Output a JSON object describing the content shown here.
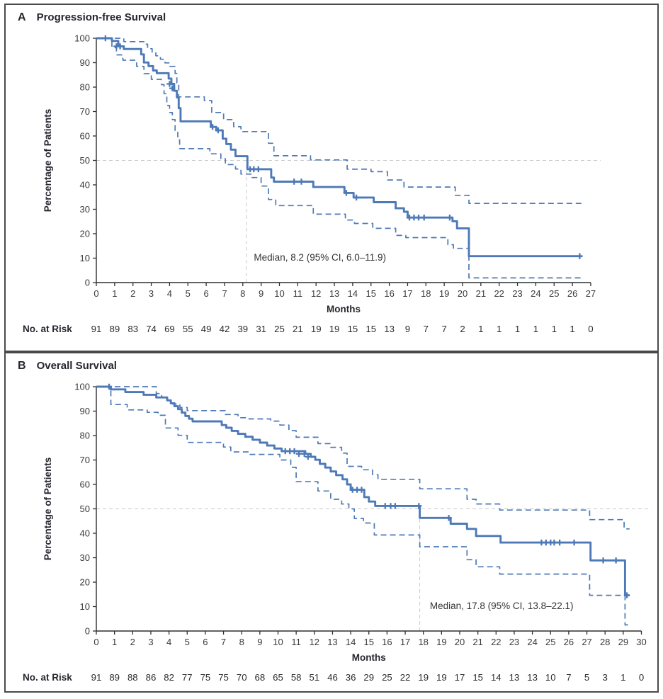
{
  "figure": {
    "risk_row_label": "No. at Risk",
    "y_axis_label": "Percentage of Patients",
    "x_axis_label": "Months",
    "accent_blue": "#4d79b6",
    "ref_gray": "#c9c9c9",
    "text_dark": "#3a3a3a",
    "border_gray": "#4a4a4a"
  },
  "chart_data": [
    {
      "type": "line",
      "subtype": "kaplan-meier-step",
      "panel_label": "A",
      "title": "Progression-free Survival",
      "ylabel": "Percentage of Patients",
      "xlabel": "Months",
      "risk_label": "No. at Risk",
      "median_text": "Median, 8.2 (95% CI, 6.0–11.9)",
      "median_x": 8.2,
      "median_y": 50,
      "x_max": 27,
      "ylim": [
        0,
        100
      ],
      "grid": "50%-reference-only",
      "legend_position": "none",
      "xticks": [
        0,
        1,
        2,
        3,
        4,
        5,
        6,
        7,
        8,
        9,
        10,
        11,
        12,
        13,
        14,
        15,
        16,
        17,
        18,
        19,
        20,
        21,
        22,
        23,
        24,
        25,
        26,
        27
      ],
      "yticks": [
        0,
        10,
        20,
        30,
        40,
        50,
        60,
        70,
        80,
        90,
        100
      ],
      "risk": [
        91,
        89,
        83,
        74,
        69,
        55,
        49,
        42,
        39,
        31,
        25,
        21,
        19,
        19,
        15,
        15,
        13,
        9,
        7,
        7,
        2,
        1,
        1,
        1,
        1,
        1,
        1,
        0
      ],
      "series": [
        {
          "name": "estimate",
          "style": "solid",
          "points": [
            [
              0,
              100
            ],
            [
              0.85,
              98.9
            ],
            [
              1.2,
              96.7
            ],
            [
              1.5,
              95.6
            ],
            [
              2.45,
              93.4
            ],
            [
              2.6,
              90.1
            ],
            [
              2.85,
              88.6
            ],
            [
              3.1,
              86.8
            ],
            [
              3.3,
              85.7
            ],
            [
              3.95,
              83.5
            ],
            [
              4.1,
              81.3
            ],
            [
              4.25,
              78.5
            ],
            [
              4.4,
              75.8
            ],
            [
              4.5,
              71.4
            ],
            [
              4.6,
              66.0
            ],
            [
              6.25,
              63.7
            ],
            [
              6.55,
              62.3
            ],
            [
              6.9,
              58.9
            ],
            [
              7.1,
              56.7
            ],
            [
              7.35,
              54.4
            ],
            [
              7.6,
              51.7
            ],
            [
              8.25,
              46.4
            ],
            [
              9.55,
              43.0
            ],
            [
              9.7,
              41.3
            ],
            [
              11.85,
              39.1
            ],
            [
              13.55,
              36.7
            ],
            [
              14.05,
              34.8
            ],
            [
              15.15,
              32.9
            ],
            [
              16.35,
              30.4
            ],
            [
              16.8,
              29.0
            ],
            [
              17.0,
              26.6
            ],
            [
              19.45,
              25.1
            ],
            [
              19.7,
              22.2
            ],
            [
              20.35,
              10.8
            ],
            [
              26.5,
              10.8
            ]
          ]
        },
        {
          "name": "ci-upper",
          "style": "dashed",
          "points": [
            [
              0,
              100
            ],
            [
              1.5,
              98.6
            ],
            [
              2.6,
              97.6
            ],
            [
              2.8,
              95.7
            ],
            [
              3.05,
              94.3
            ],
            [
              3.25,
              92.8
            ],
            [
              3.5,
              91.4
            ],
            [
              3.75,
              89.9
            ],
            [
              4.0,
              88.5
            ],
            [
              4.3,
              85.6
            ],
            [
              4.4,
              81.7
            ],
            [
              4.5,
              76.0
            ],
            [
              5.9,
              74.5
            ],
            [
              6.3,
              69.6
            ],
            [
              6.95,
              66.7
            ],
            [
              7.5,
              63.8
            ],
            [
              7.9,
              61.8
            ],
            [
              9.4,
              57.0
            ],
            [
              9.7,
              51.9
            ],
            [
              11.7,
              50.2
            ],
            [
              13.7,
              46.4
            ],
            [
              15.0,
              45.4
            ],
            [
              15.9,
              42.0
            ],
            [
              16.8,
              39.1
            ],
            [
              19.6,
              35.7
            ],
            [
              20.35,
              32.4
            ],
            [
              26.55,
              32.4
            ]
          ]
        },
        {
          "name": "ci-lower",
          "style": "dashed",
          "points": [
            [
              0,
              100
            ],
            [
              0.85,
              96.2
            ],
            [
              1.1,
              93.2
            ],
            [
              1.45,
              91.0
            ],
            [
              2.2,
              88.5
            ],
            [
              2.6,
              85.5
            ],
            [
              3.0,
              83.2
            ],
            [
              3.55,
              81.0
            ],
            [
              3.7,
              77.3
            ],
            [
              3.85,
              72.5
            ],
            [
              4.0,
              69.6
            ],
            [
              4.15,
              66.7
            ],
            [
              4.3,
              62.0
            ],
            [
              4.45,
              58.4
            ],
            [
              4.55,
              54.8
            ],
            [
              6.2,
              52.7
            ],
            [
              6.8,
              50.7
            ],
            [
              7.05,
              48.3
            ],
            [
              7.6,
              46.5
            ],
            [
              7.9,
              44.4
            ],
            [
              8.5,
              43.0
            ],
            [
              9.0,
              39.5
            ],
            [
              9.4,
              34.0
            ],
            [
              9.8,
              31.5
            ],
            [
              11.85,
              28.0
            ],
            [
              13.6,
              25.6
            ],
            [
              14.1,
              24.2
            ],
            [
              15.1,
              22.2
            ],
            [
              16.35,
              19.3
            ],
            [
              16.9,
              18.4
            ],
            [
              19.2,
              15.5
            ],
            [
              19.5,
              14.0
            ],
            [
              20.35,
              1.9
            ],
            [
              26.5,
              1.9
            ]
          ]
        }
      ],
      "censors": [
        [
          0.5,
          100
        ],
        [
          1.1,
          96.7
        ],
        [
          1.3,
          96.7
        ],
        [
          4.0,
          81.3
        ],
        [
          4.15,
          79.5
        ],
        [
          6.35,
          63.7
        ],
        [
          6.65,
          62.3
        ],
        [
          8.4,
          46.4
        ],
        [
          8.6,
          46.4
        ],
        [
          8.85,
          46.4
        ],
        [
          10.8,
          41.3
        ],
        [
          11.2,
          41.3
        ],
        [
          13.65,
          36.7
        ],
        [
          14.2,
          34.8
        ],
        [
          17.1,
          26.6
        ],
        [
          17.35,
          26.6
        ],
        [
          17.6,
          26.6
        ],
        [
          17.9,
          26.6
        ],
        [
          19.3,
          26.6
        ],
        [
          26.4,
          10.8
        ]
      ],
      "median_label_pos": [
        8.45,
        9
      ]
    },
    {
      "type": "line",
      "subtype": "kaplan-meier-step",
      "panel_label": "B",
      "title": "Overall Survival",
      "ylabel": "Percentage of Patients",
      "xlabel": "Months",
      "risk_label": "No. at Risk",
      "median_text": "Median, 17.8 (95% CI, 13.8–22.1)",
      "median_x": 17.8,
      "median_y": 50,
      "x_max": 30,
      "ylim": [
        0,
        100
      ],
      "grid": "50%-reference-only",
      "legend_position": "none",
      "xticks": [
        0,
        1,
        2,
        3,
        4,
        5,
        6,
        7,
        8,
        9,
        10,
        11,
        12,
        13,
        14,
        15,
        16,
        17,
        18,
        19,
        20,
        21,
        22,
        23,
        24,
        25,
        26,
        27,
        28,
        29,
        30
      ],
      "yticks": [
        0,
        10,
        20,
        30,
        40,
        50,
        60,
        70,
        80,
        90,
        100
      ],
      "risk": [
        91,
        89,
        88,
        86,
        82,
        77,
        75,
        75,
        70,
        68,
        65,
        58,
        51,
        46,
        36,
        29,
        25,
        22,
        19,
        19,
        17,
        15,
        14,
        13,
        13,
        10,
        7,
        5,
        3,
        1,
        0
      ],
      "series": [
        {
          "name": "estimate",
          "style": "solid",
          "points": [
            [
              0,
              100
            ],
            [
              0.8,
              98.9
            ],
            [
              1.6,
              97.8
            ],
            [
              2.6,
              96.7
            ],
            [
              3.3,
              95.6
            ],
            [
              3.9,
              94.4
            ],
            [
              4.1,
              93.2
            ],
            [
              4.3,
              92.0
            ],
            [
              4.5,
              90.8
            ],
            [
              4.7,
              89.4
            ],
            [
              4.9,
              88.0
            ],
            [
              5.1,
              86.9
            ],
            [
              5.3,
              85.8
            ],
            [
              6.9,
              84.3
            ],
            [
              7.15,
              83.2
            ],
            [
              7.45,
              81.9
            ],
            [
              7.8,
              80.7
            ],
            [
              8.2,
              79.5
            ],
            [
              8.6,
              78.3
            ],
            [
              9.0,
              77.1
            ],
            [
              9.4,
              75.9
            ],
            [
              9.8,
              74.7
            ],
            [
              10.2,
              73.6
            ],
            [
              11.5,
              72.5
            ],
            [
              11.8,
              71.3
            ],
            [
              12.05,
              70.1
            ],
            [
              12.3,
              68.4
            ],
            [
              12.6,
              66.9
            ],
            [
              12.9,
              65.3
            ],
            [
              13.2,
              63.8
            ],
            [
              13.55,
              62.1
            ],
            [
              13.8,
              60.0
            ],
            [
              14.0,
              57.8
            ],
            [
              14.75,
              54.8
            ],
            [
              15.0,
              53.0
            ],
            [
              15.35,
              51.2
            ],
            [
              17.8,
              46.3
            ],
            [
              19.5,
              43.9
            ],
            [
              20.4,
              41.8
            ],
            [
              20.9,
              38.9
            ],
            [
              22.25,
              36.2
            ],
            [
              27.2,
              28.9
            ],
            [
              29.1,
              14.6
            ],
            [
              29.35,
              14.6
            ]
          ]
        },
        {
          "name": "ci-upper",
          "style": "dashed",
          "points": [
            [
              0,
              100
            ],
            [
              3.3,
              97.2
            ],
            [
              3.6,
              95.6
            ],
            [
              3.9,
              94.3
            ],
            [
              4.2,
              92.9
            ],
            [
              4.6,
              91.5
            ],
            [
              5.0,
              90.2
            ],
            [
              7.1,
              88.6
            ],
            [
              7.8,
              87.3
            ],
            [
              8.4,
              86.8
            ],
            [
              9.6,
              85.9
            ],
            [
              10.1,
              84.3
            ],
            [
              10.6,
              82.0
            ],
            [
              11.0,
              79.3
            ],
            [
              12.2,
              76.7
            ],
            [
              12.9,
              75.2
            ],
            [
              13.5,
              72.8
            ],
            [
              13.8,
              67.4
            ],
            [
              14.6,
              66.0
            ],
            [
              15.2,
              64.0
            ],
            [
              15.5,
              62.1
            ],
            [
              17.8,
              58.2
            ],
            [
              20.4,
              53.9
            ],
            [
              20.9,
              52.0
            ],
            [
              22.2,
              49.5
            ],
            [
              27.15,
              45.6
            ],
            [
              29.05,
              41.8
            ],
            [
              29.35,
              41.8
            ]
          ]
        },
        {
          "name": "ci-lower",
          "style": "dashed",
          "points": [
            [
              0,
              100
            ],
            [
              0.8,
              92.7
            ],
            [
              1.7,
              90.5
            ],
            [
              2.8,
              89.5
            ],
            [
              3.4,
              88.3
            ],
            [
              3.8,
              83.1
            ],
            [
              4.5,
              80.1
            ],
            [
              5.0,
              77.2
            ],
            [
              7.0,
              75.3
            ],
            [
              7.4,
              73.3
            ],
            [
              8.4,
              72.3
            ],
            [
              10.1,
              70.0
            ],
            [
              10.7,
              67.0
            ],
            [
              11.0,
              61.1
            ],
            [
              12.2,
              57.3
            ],
            [
              12.9,
              53.9
            ],
            [
              13.5,
              52.0
            ],
            [
              13.9,
              50.0
            ],
            [
              14.2,
              46.1
            ],
            [
              14.7,
              44.2
            ],
            [
              15.3,
              39.3
            ],
            [
              17.8,
              34.5
            ],
            [
              20.4,
              29.2
            ],
            [
              20.9,
              26.3
            ],
            [
              22.2,
              23.3
            ],
            [
              27.15,
              14.6
            ],
            [
              29.1,
              2.5
            ],
            [
              29.35,
              2.5
            ]
          ]
        }
      ],
      "censors": [
        [
          0.7,
          100
        ],
        [
          10.4,
          73.6
        ],
        [
          10.65,
          73.6
        ],
        [
          10.9,
          73.6
        ],
        [
          11.15,
          72.5
        ],
        [
          11.45,
          72.5
        ],
        [
          11.65,
          71.3
        ],
        [
          14.1,
          57.8
        ],
        [
          14.35,
          57.8
        ],
        [
          14.6,
          57.8
        ],
        [
          15.9,
          51.2
        ],
        [
          16.2,
          51.2
        ],
        [
          16.45,
          51.2
        ],
        [
          17.75,
          51.2
        ],
        [
          19.4,
          46.3
        ],
        [
          24.5,
          36.2
        ],
        [
          24.75,
          36.2
        ],
        [
          25.0,
          36.2
        ],
        [
          25.2,
          36.2
        ],
        [
          25.5,
          36.2
        ],
        [
          26.3,
          36.2
        ],
        [
          27.9,
          28.9
        ],
        [
          28.6,
          28.9
        ],
        [
          29.2,
          14.6
        ]
      ],
      "median_label_pos": [
        18.2,
        9
      ]
    }
  ]
}
